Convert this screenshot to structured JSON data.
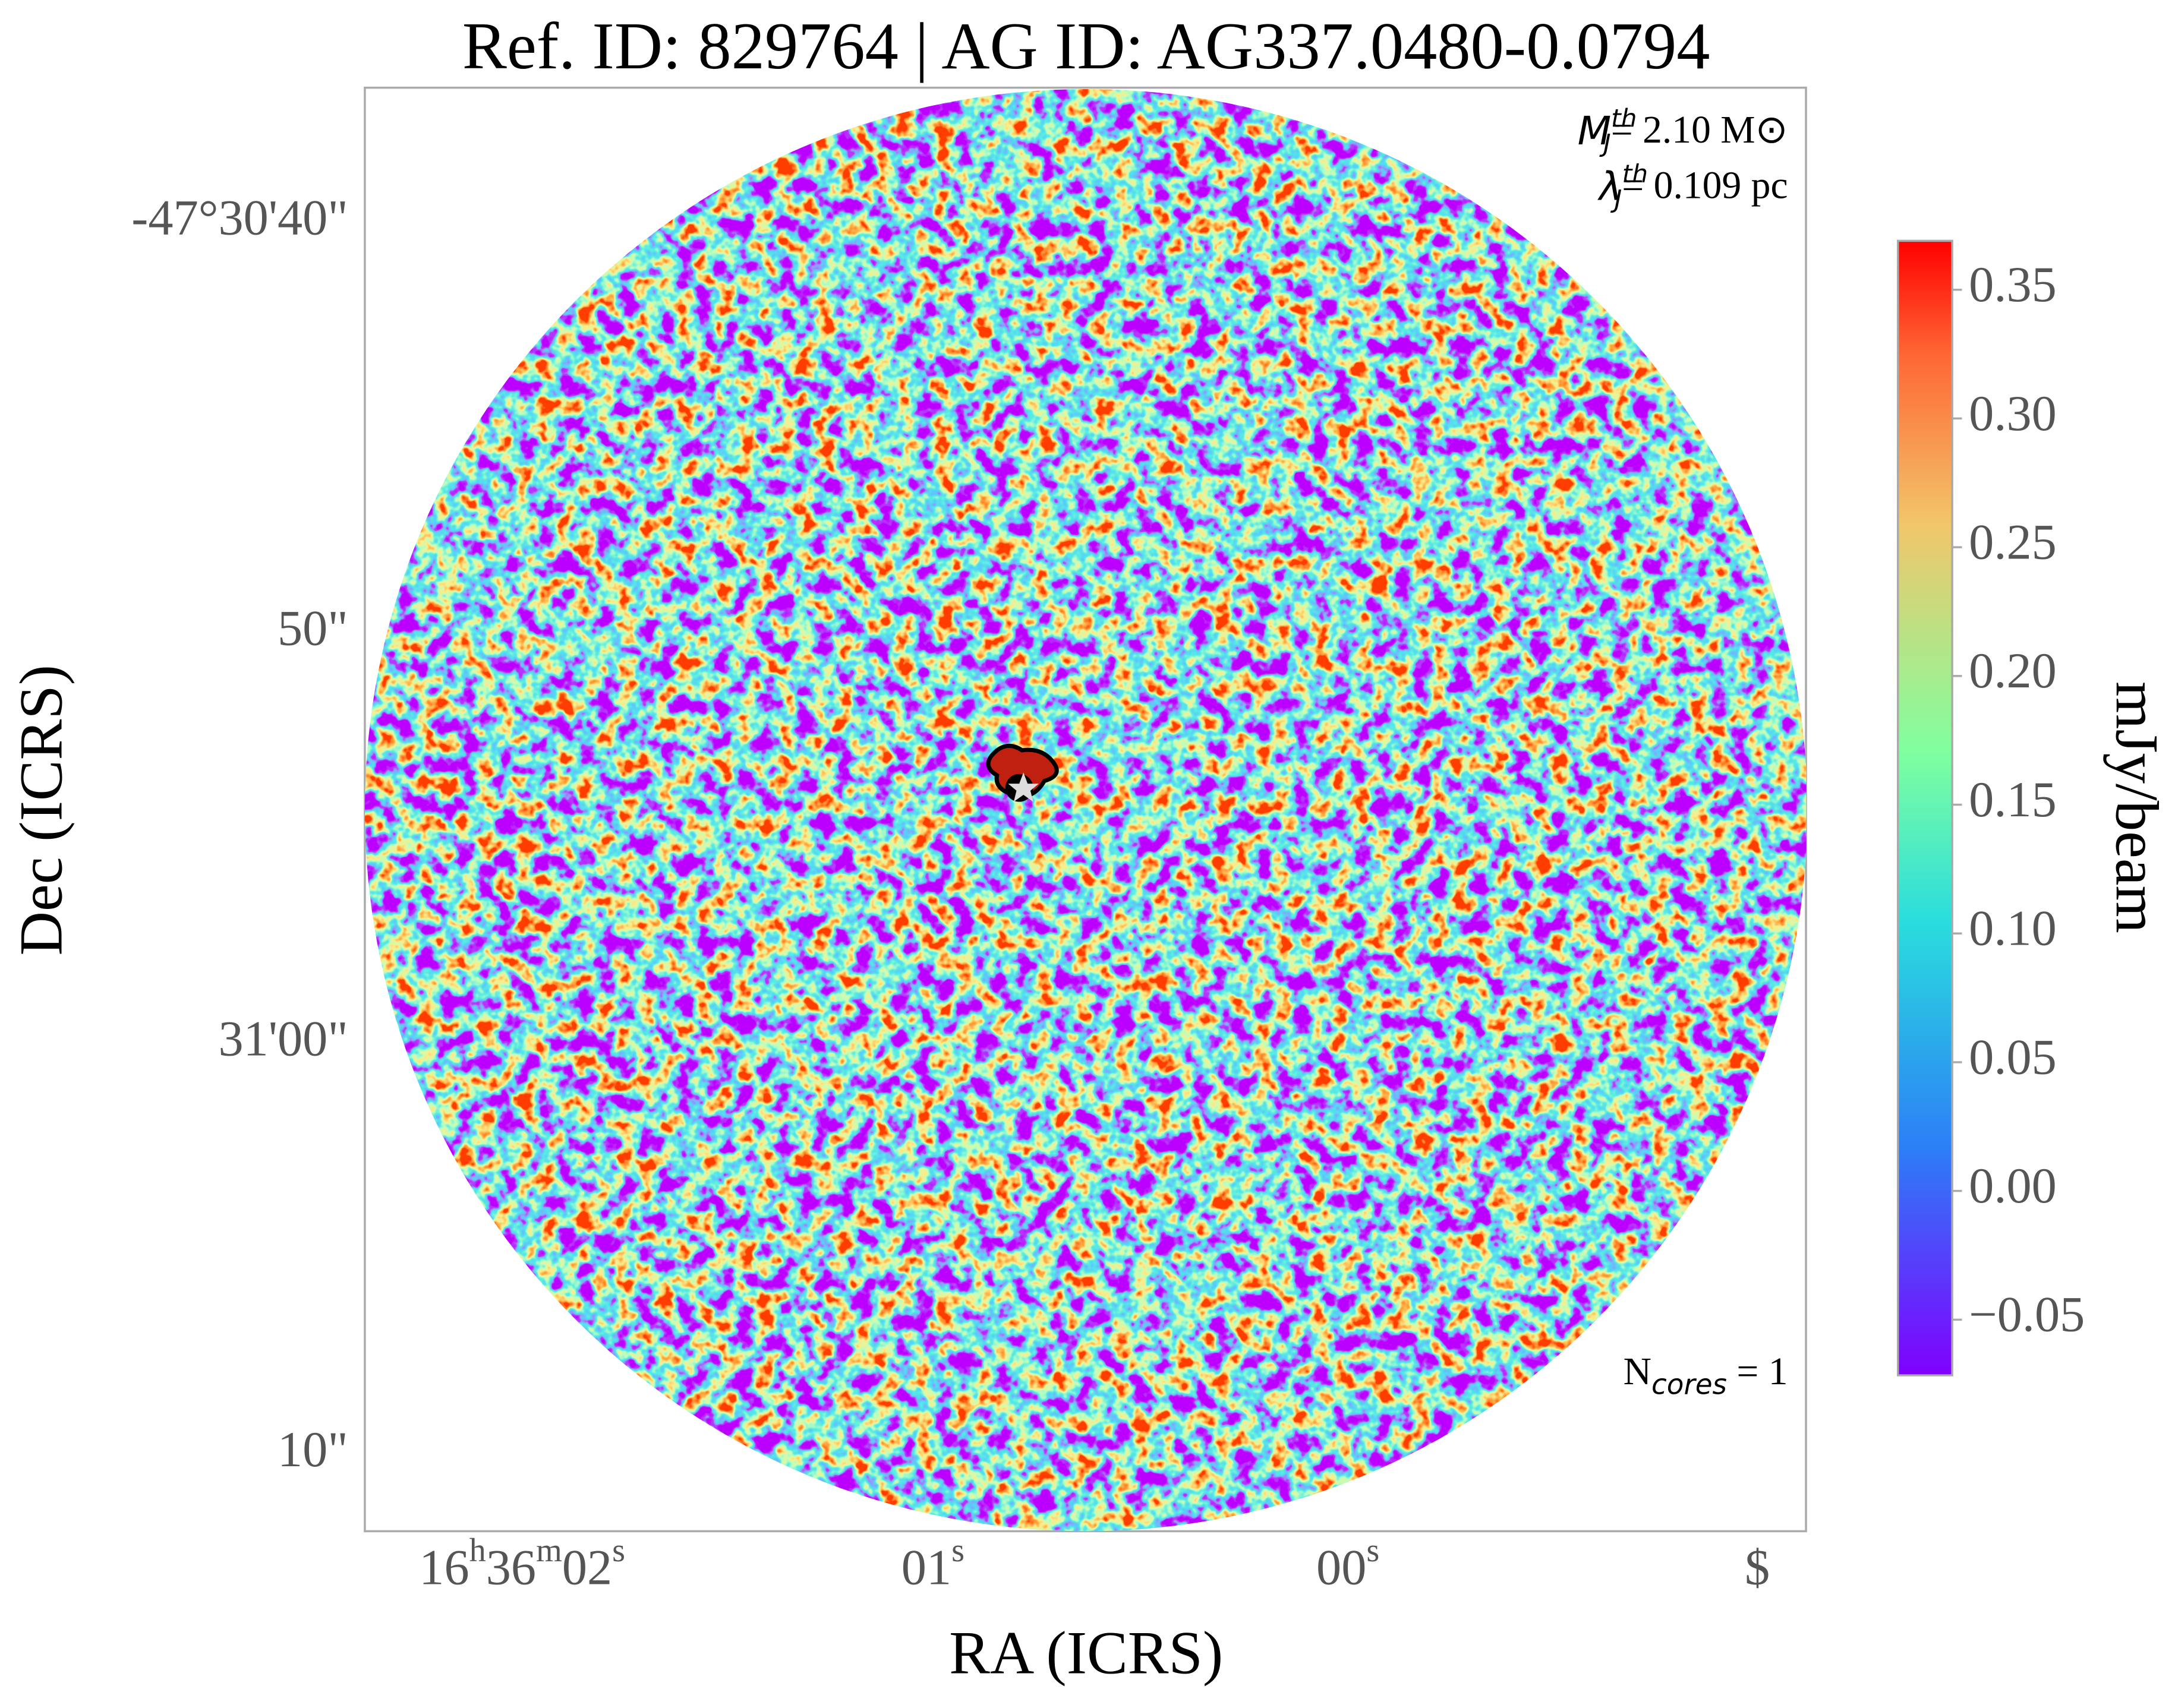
{
  "chart_data": {
    "type": "image",
    "title": "Ref. ID: 829764 | AG ID: AG337.0480-0.0794",
    "xlabel": "RA (ICRS)",
    "ylabel": "Dec (ICRS)",
    "xticks": [
      "16h36m02s",
      "01s",
      "00s",
      "$"
    ],
    "yticks": [
      "-47°30'40\"",
      "50\"",
      "31'00\"",
      "10\""
    ],
    "annotations": [
      {
        "base": "M",
        "sub": "J",
        "sup": "th",
        "text": "= 2.10 M⊙"
      },
      {
        "base": "λ",
        "sub": "J",
        "sup": "th",
        "text": "= 0.109 pc"
      },
      {
        "base": "N",
        "sub": "cores",
        "text": " = 1"
      }
    ],
    "colorbar": {
      "label": "mJy/beam",
      "colormap": "rainbow",
      "lim": [
        -0.0716,
        0.369
      ],
      "ticks": [
        {
          "value": -0.05,
          "label": "−0.05"
        },
        {
          "value": 0,
          "label": "0.00"
        },
        {
          "value": 0.05,
          "label": "0.05"
        },
        {
          "value": 0.1,
          "label": "0.10"
        },
        {
          "value": 0.15,
          "label": "0.15"
        },
        {
          "value": 0.2,
          "label": "0.20"
        },
        {
          "value": 0.25,
          "label": "0.25"
        },
        {
          "value": 0.3,
          "label": "0.30"
        },
        0.35
      ]
    }
  }
}
